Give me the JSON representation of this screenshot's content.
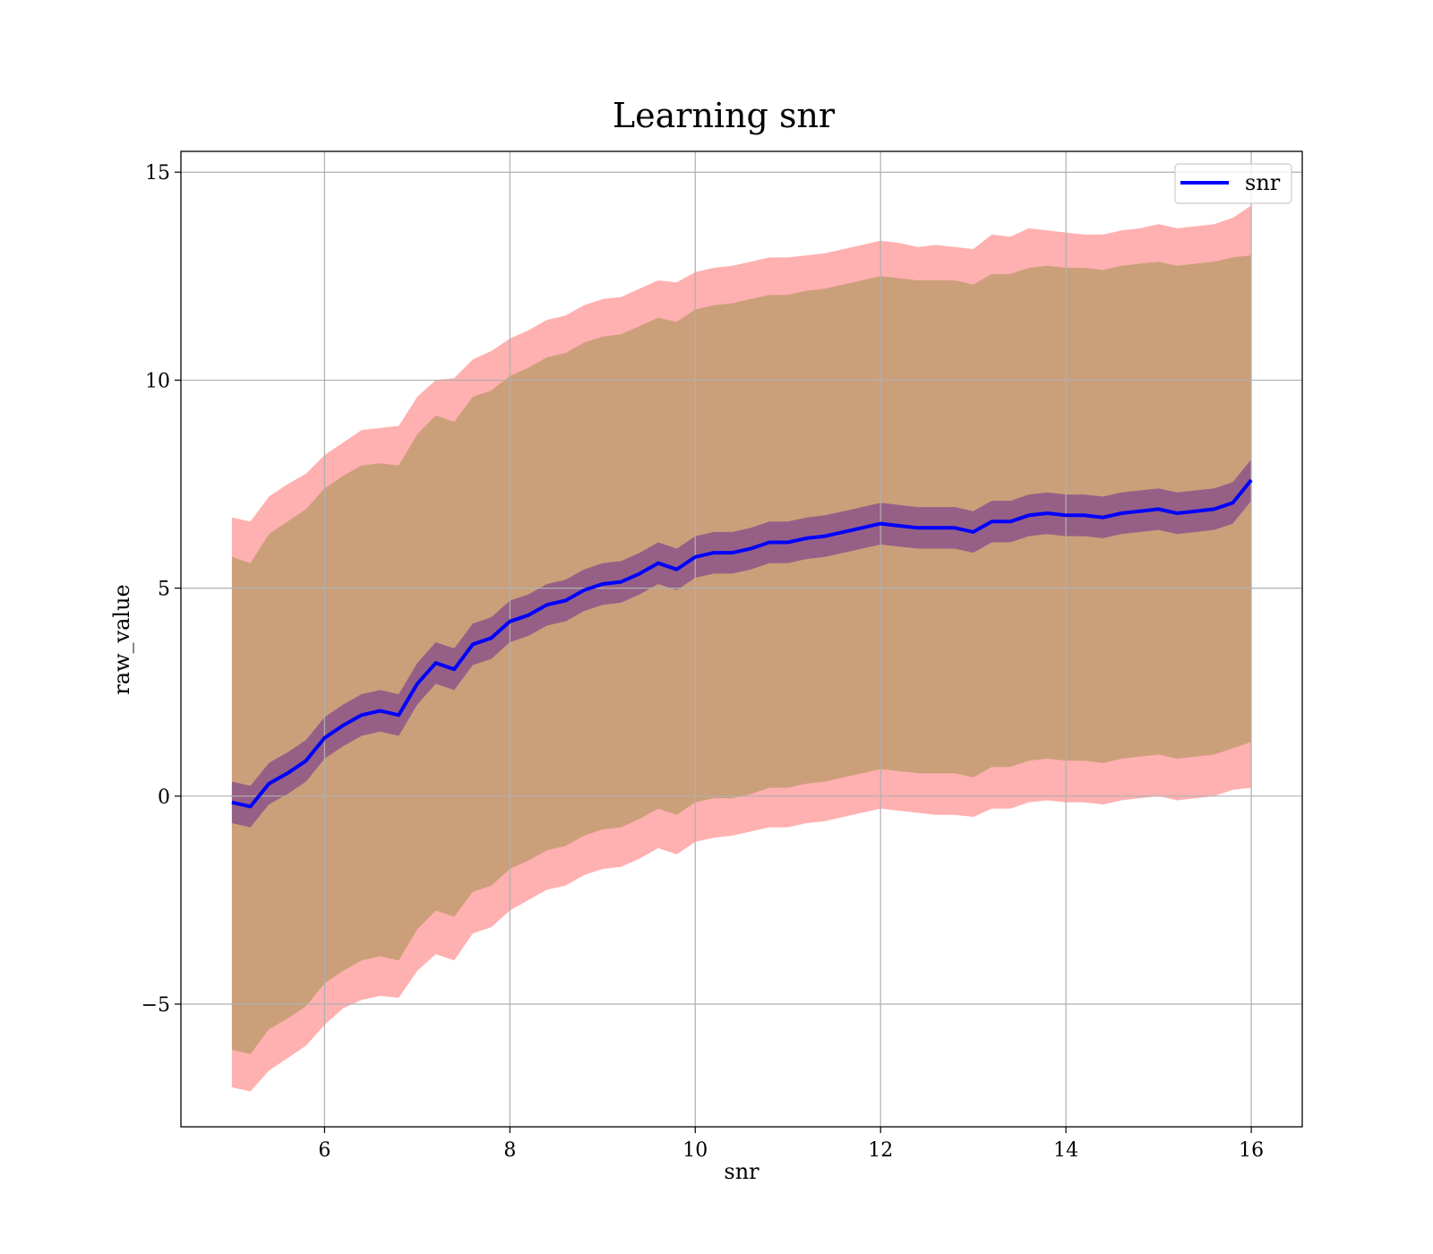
{
  "chart_data": {
    "type": "line",
    "title": "Learning snr",
    "xlabel": "snr",
    "ylabel": "raw_value",
    "xlim": [
      4.45,
      16.55
    ],
    "ylim": [
      -7.95,
      15.5
    ],
    "xticks": [
      6,
      8,
      10,
      12,
      14,
      16
    ],
    "xtick_labels": [
      "6",
      "8",
      "10",
      "12",
      "14",
      "16"
    ],
    "yticks": [
      -5,
      0,
      5,
      10,
      15
    ],
    "ytick_labels": [
      "−5",
      "0",
      "5",
      "10",
      "15"
    ],
    "grid": true,
    "legend": {
      "placement": "top-right",
      "entries": [
        {
          "name": "snr",
          "color": "#0000ff"
        }
      ]
    },
    "x": [
      5.0,
      5.2,
      5.4,
      5.6,
      5.8,
      6.0,
      6.2,
      6.4,
      6.6,
      6.8,
      7.0,
      7.2,
      7.4,
      7.6,
      7.8,
      8.0,
      8.2,
      8.4,
      8.6,
      8.8,
      9.0,
      9.2,
      9.4,
      9.6,
      9.8,
      10.0,
      10.2,
      10.4,
      10.6,
      10.8,
      11.0,
      11.2,
      11.4,
      11.6,
      11.8,
      12.0,
      12.2,
      12.4,
      12.6,
      12.8,
      13.0,
      13.2,
      13.4,
      13.6,
      13.8,
      14.0,
      14.2,
      14.4,
      14.6,
      14.8,
      15.0,
      15.2,
      15.4,
      15.6,
      15.8,
      16.0
    ],
    "series": [
      {
        "name": "snr",
        "color": "#0000ff",
        "values": [
          -0.15,
          -0.25,
          0.3,
          0.55,
          0.85,
          1.4,
          1.7,
          1.95,
          2.05,
          1.95,
          2.7,
          3.2,
          3.05,
          3.65,
          3.8,
          4.2,
          4.35,
          4.6,
          4.7,
          4.95,
          5.1,
          5.15,
          5.35,
          5.6,
          5.45,
          5.75,
          5.85,
          5.85,
          5.95,
          6.1,
          6.1,
          6.2,
          6.25,
          6.35,
          6.45,
          6.55,
          6.5,
          6.45,
          6.45,
          6.45,
          6.35,
          6.6,
          6.6,
          6.75,
          6.8,
          6.75,
          6.75,
          6.7,
          6.8,
          6.85,
          6.9,
          6.8,
          6.85,
          6.9,
          7.05,
          7.6
        ]
      }
    ],
    "bands": [
      {
        "color": "#ff7f7f",
        "upper": [
          6.7,
          6.6,
          7.2,
          7.5,
          7.75,
          8.2,
          8.5,
          8.8,
          8.85,
          8.9,
          9.6,
          10.0,
          10.05,
          10.5,
          10.7,
          11.0,
          11.2,
          11.45,
          11.55,
          11.8,
          11.95,
          12.0,
          12.2,
          12.4,
          12.35,
          12.6,
          12.7,
          12.75,
          12.85,
          12.95,
          12.95,
          13.0,
          13.05,
          13.15,
          13.25,
          13.35,
          13.3,
          13.2,
          13.25,
          13.2,
          13.15,
          13.5,
          13.45,
          13.65,
          13.6,
          13.55,
          13.5,
          13.5,
          13.6,
          13.65,
          13.75,
          13.65,
          13.7,
          13.75,
          13.9,
          14.2
        ],
        "lower": [
          -7.0,
          -7.1,
          -6.6,
          -6.3,
          -6.0,
          -5.5,
          -5.1,
          -4.9,
          -4.8,
          -4.85,
          -4.2,
          -3.8,
          -3.95,
          -3.3,
          -3.15,
          -2.75,
          -2.5,
          -2.25,
          -2.15,
          -1.9,
          -1.75,
          -1.7,
          -1.5,
          -1.25,
          -1.4,
          -1.1,
          -1.0,
          -0.95,
          -0.85,
          -0.75,
          -0.75,
          -0.65,
          -0.6,
          -0.5,
          -0.4,
          -0.3,
          -0.35,
          -0.4,
          -0.45,
          -0.45,
          -0.5,
          -0.3,
          -0.3,
          -0.15,
          -0.1,
          -0.15,
          -0.15,
          -0.2,
          -0.1,
          -0.05,
          0.0,
          -0.1,
          -0.05,
          0.0,
          0.15,
          0.2
        ]
      },
      {
        "color": "#8b8b3a",
        "upper": [
          5.75,
          5.6,
          6.3,
          6.6,
          6.9,
          7.4,
          7.7,
          7.95,
          8.0,
          7.95,
          8.7,
          9.15,
          9.0,
          9.6,
          9.75,
          10.1,
          10.3,
          10.55,
          10.65,
          10.9,
          11.05,
          11.1,
          11.3,
          11.5,
          11.4,
          11.7,
          11.8,
          11.85,
          11.95,
          12.05,
          12.05,
          12.15,
          12.2,
          12.3,
          12.4,
          12.5,
          12.45,
          12.4,
          12.4,
          12.4,
          12.3,
          12.55,
          12.55,
          12.7,
          12.75,
          12.7,
          12.7,
          12.65,
          12.75,
          12.8,
          12.85,
          12.75,
          12.8,
          12.85,
          12.95,
          13.0
        ],
        "lower": [
          -6.1,
          -6.2,
          -5.6,
          -5.35,
          -5.05,
          -4.5,
          -4.2,
          -3.95,
          -3.85,
          -3.95,
          -3.2,
          -2.75,
          -2.9,
          -2.3,
          -2.15,
          -1.75,
          -1.55,
          -1.3,
          -1.2,
          -0.95,
          -0.8,
          -0.75,
          -0.55,
          -0.3,
          -0.45,
          -0.15,
          -0.05,
          -0.05,
          0.05,
          0.2,
          0.2,
          0.3,
          0.35,
          0.45,
          0.55,
          0.65,
          0.6,
          0.55,
          0.55,
          0.55,
          0.45,
          0.7,
          0.7,
          0.85,
          0.9,
          0.85,
          0.85,
          0.8,
          0.9,
          0.95,
          1.0,
          0.9,
          0.95,
          1.0,
          1.15,
          1.3
        ]
      },
      {
        "color": "#6b2c8f",
        "upper": [
          0.35,
          0.25,
          0.8,
          1.05,
          1.35,
          1.9,
          2.2,
          2.45,
          2.55,
          2.45,
          3.2,
          3.7,
          3.55,
          4.15,
          4.3,
          4.7,
          4.85,
          5.1,
          5.2,
          5.45,
          5.6,
          5.65,
          5.85,
          6.1,
          5.95,
          6.25,
          6.35,
          6.35,
          6.45,
          6.6,
          6.6,
          6.7,
          6.75,
          6.85,
          6.95,
          7.05,
          7.0,
          6.95,
          6.95,
          6.95,
          6.85,
          7.1,
          7.1,
          7.25,
          7.3,
          7.25,
          7.25,
          7.2,
          7.3,
          7.35,
          7.4,
          7.3,
          7.35,
          7.4,
          7.55,
          8.1
        ],
        "lower": [
          -0.65,
          -0.75,
          -0.2,
          0.05,
          0.35,
          0.9,
          1.2,
          1.45,
          1.55,
          1.45,
          2.2,
          2.7,
          2.55,
          3.15,
          3.3,
          3.7,
          3.85,
          4.1,
          4.2,
          4.45,
          4.6,
          4.65,
          4.85,
          5.1,
          4.95,
          5.25,
          5.35,
          5.35,
          5.45,
          5.6,
          5.6,
          5.7,
          5.75,
          5.85,
          5.95,
          6.05,
          6.0,
          5.95,
          5.95,
          5.95,
          5.85,
          6.1,
          6.1,
          6.25,
          6.3,
          6.25,
          6.25,
          6.2,
          6.3,
          6.35,
          6.4,
          6.3,
          6.35,
          6.4,
          6.55,
          7.1
        ]
      }
    ]
  }
}
